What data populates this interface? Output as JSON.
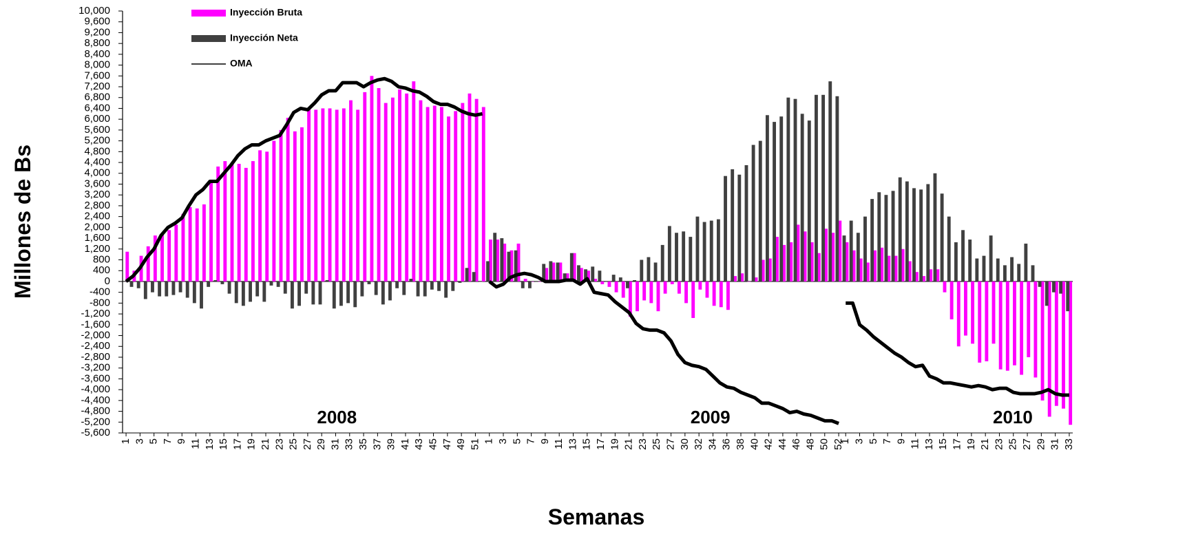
{
  "chart_data": {
    "type": "bar",
    "ylabel": "Millones de Bs",
    "xlabel": "Semanas",
    "ylim": [
      -5600,
      10000
    ],
    "yticks": [
      {
        "value": -5600,
        "label": "-5,600"
      },
      {
        "value": -5200,
        "label": "-5,200"
      },
      {
        "value": -4800,
        "label": "-4,800"
      },
      {
        "value": -4400,
        "label": "-4,400"
      },
      {
        "value": -4000,
        "label": "-4,000"
      },
      {
        "value": -3600,
        "label": "-3,600"
      },
      {
        "value": -3200,
        "label": "-3,200"
      },
      {
        "value": -2800,
        "label": "-2,800"
      },
      {
        "value": -2400,
        "label": "-2,400"
      },
      {
        "value": -2000,
        "label": "-2,000"
      },
      {
        "value": -1600,
        "label": "-1,600"
      },
      {
        "value": -1200,
        "label": "-1,200"
      },
      -800,
      -400,
      0,
      400,
      800,
      {
        "value": 1200,
        "label": "1,200"
      },
      {
        "value": 1600,
        "label": "1,600"
      },
      {
        "value": 2000,
        "label": "2,000"
      },
      {
        "value": 2400,
        "label": "2,400"
      },
      {
        "value": 2800,
        "label": "2,800"
      },
      {
        "value": 3200,
        "label": "3,200"
      },
      {
        "value": 3600,
        "label": "3,600"
      },
      {
        "value": 4000,
        "label": "4,000"
      },
      {
        "value": 4400,
        "label": "4,400"
      },
      {
        "value": 4800,
        "label": "4,800"
      },
      {
        "value": 5200,
        "label": "5,200"
      },
      {
        "value": 5600,
        "label": "5,600"
      },
      {
        "value": 6000,
        "label": "6,000"
      },
      {
        "value": 6400,
        "label": "6,400"
      },
      {
        "value": 6800,
        "label": "6,800"
      },
      {
        "value": 7200,
        "label": "7,200"
      },
      {
        "value": 7600,
        "label": "7,600"
      },
      {
        "value": 8000,
        "label": "8,000"
      },
      {
        "value": 8400,
        "label": "8,400"
      },
      {
        "value": 8800,
        "label": "8,800"
      },
      {
        "value": 9200,
        "label": "9,200"
      },
      {
        "value": 9600,
        "label": "9,600"
      },
      {
        "value": 10000,
        "label": "10,000"
      }
    ],
    "legend": "top-left",
    "series": [
      {
        "name": "Inyección Bruta",
        "color": "#ff00ff",
        "type": "bar"
      },
      {
        "name": "Inyección Neta",
        "color": "#404040",
        "type": "bar"
      },
      {
        "name": "OMA",
        "color": "#000000",
        "type": "line"
      }
    ],
    "groups": [
      {
        "label": "2008",
        "categories": [
          1,
          null,
          3,
          null,
          5,
          null,
          7,
          null,
          9,
          null,
          11,
          null,
          13,
          null,
          15,
          null,
          17,
          null,
          19,
          null,
          21,
          null,
          23,
          null,
          25,
          null,
          27,
          null,
          29,
          null,
          31,
          null,
          33,
          null,
          35,
          null,
          37,
          null,
          39,
          null,
          41,
          null,
          43,
          null,
          45,
          null,
          47,
          null,
          49,
          null,
          51,
          null
        ],
        "series": [
          {
            "values": [
              1100,
              400,
              950,
              1300,
              1700,
              1750,
              1900,
              2100,
              2500,
              2750,
              2700,
              2850,
              3700,
              4250,
              4450,
              4350,
              4350,
              4200,
              4450,
              4850,
              4800,
              5200,
              5600,
              6050,
              5550,
              5700,
              6400,
              6350,
              6400,
              6400,
              6350,
              6400,
              6700,
              6350,
              7000,
              7600,
              7150,
              6600,
              6800,
              7100,
              6950,
              7400,
              6700,
              6450,
              6500,
              6450,
              6100,
              6300,
              6600,
              6950,
              6750,
              6450
            ]
          },
          {
            "values": [
              0,
              -200,
              -250,
              -650,
              -400,
              -550,
              -550,
              -500,
              -400,
              -600,
              -800,
              -1000,
              -200,
              50,
              -100,
              -450,
              -800,
              -900,
              -750,
              -550,
              -750,
              -150,
              -200,
              -450,
              -1000,
              -900,
              -450,
              -850,
              -850,
              50,
              -1000,
              -900,
              -800,
              -950,
              -550,
              -100,
              -500,
              -850,
              -700,
              -250,
              -500,
              100,
              -550,
              -550,
              -300,
              -350,
              -600,
              -350,
              -50,
              500,
              350,
              0
            ]
          },
          {
            "values": [
              0,
              200,
              500,
              900,
              1200,
              1700,
              2000,
              2150,
              2350,
              2800,
              3200,
              3400,
              3700,
              3700,
              4000,
              4300,
              4650,
              4900,
              5050,
              5050,
              5200,
              5300,
              5400,
              5800,
              6250,
              6400,
              6350,
              6600,
              6900,
              7050,
              7050,
              7350,
              7350,
              7350,
              7200,
              7350,
              7450,
              7500,
              7400,
              7200,
              7150,
              7050,
              7000,
              6850,
              6650,
              6550,
              6550,
              6450,
              6300,
              6200,
              6150,
              6200
            ]
          }
        ]
      },
      {
        "label": "2009",
        "categories": [
          1,
          null,
          3,
          null,
          5,
          null,
          7,
          null,
          9,
          null,
          11,
          null,
          13,
          null,
          15,
          null,
          17,
          null,
          19,
          null,
          21,
          null,
          23,
          null,
          25,
          null,
          27,
          null,
          30,
          null,
          32,
          null,
          34,
          null,
          36,
          null,
          38,
          null,
          40,
          null,
          42,
          null,
          44,
          null,
          46,
          null,
          48,
          null,
          50,
          null,
          52
        ],
        "series": [
          {
            "values": [
              1550,
              1550,
              1400,
              1150,
              1400,
              100,
              0,
              0,
              500,
              700,
              700,
              300,
              1050,
              500,
              400,
              100,
              -100,
              -200,
              -400,
              -600,
              -1300,
              -1100,
              -700,
              -800,
              -1100,
              -450,
              -100,
              -450,
              -800,
              -1350,
              -300,
              -600,
              -900,
              -950,
              -1050,
              200,
              300,
              0,
              150,
              800,
              850,
              1650,
              1350,
              1450,
              2100,
              1850,
              1450,
              1050,
              1950,
              1800,
              2250
            ]
          },
          {
            "values": [
              750,
              1800,
              1600,
              1100,
              1150,
              -250,
              -250,
              0,
              650,
              750,
              700,
              300,
              1050,
              600,
              450,
              550,
              400,
              0,
              250,
              150,
              -250,
              50,
              800,
              900,
              700,
              1350,
              2050,
              1800,
              1850,
              1650,
              2400,
              2200,
              2250,
              2300,
              3900,
              4150,
              3950,
              4300,
              5050,
              5200,
              6150,
              5900,
              6100,
              6800,
              6750,
              6200,
              5950,
              6900,
              6900,
              7400,
              6850
            ]
          },
          {
            "values": [
              0,
              -200,
              -100,
              150,
              250,
              300,
              250,
              150,
              0,
              0,
              0,
              50,
              50,
              -100,
              100,
              -400,
              -450,
              -500,
              -750,
              -950,
              -1150,
              -1550,
              -1750,
              -1800,
              -1800,
              -1900,
              -2200,
              -2700,
              -3000,
              -3100,
              -3150,
              -3250,
              -3500,
              -3750,
              -3900,
              -3950,
              -4100,
              -4200,
              -4300,
              -4500,
              -4500,
              -4600,
              -4700,
              -4850,
              -4800,
              -4900,
              -4950,
              -5050,
              -5150,
              -5150,
              -5250
            ]
          }
        ]
      },
      {
        "label": "2010",
        "categories": [
          1,
          null,
          3,
          null,
          5,
          null,
          7,
          null,
          9,
          null,
          11,
          null,
          13,
          null,
          15,
          null,
          17,
          null,
          19,
          null,
          21,
          null,
          23,
          null,
          25,
          null,
          27,
          null,
          29,
          null,
          31,
          null,
          33
        ],
        "series": [
          {
            "values": [
              1450,
              1150,
              850,
              700,
              1150,
              1250,
              950,
              950,
              1200,
              750,
              350,
              200,
              450,
              450,
              -400,
              -1400,
              -2400,
              -2000,
              -2300,
              -3000,
              -2950,
              -2300,
              -3250,
              -3300,
              -3100,
              -3450,
              -2800,
              -3550,
              -4400,
              -5000,
              -4600,
              -4700,
              -5300
            ]
          },
          {
            "values": [
              1700,
              2250,
              1800,
              2400,
              3050,
              3300,
              3200,
              3350,
              3850,
              3700,
              3450,
              3400,
              3600,
              4000,
              3250,
              2400,
              1450,
              1900,
              1550,
              850,
              950,
              1700,
              850,
              600,
              900,
              650,
              1400,
              600,
              -200,
              -900,
              -400,
              -450,
              -1100
            ]
          },
          {
            "values": [
              -800,
              -800,
              -1600,
              -1800,
              -2050,
              -2250,
              -2450,
              -2650,
              -2800,
              -3000,
              -3150,
              -3100,
              -3500,
              -3600,
              -3750,
              -3750,
              -3800,
              -3850,
              -3900,
              -3850,
              -3900,
              -4000,
              -3950,
              -3950,
              -4100,
              -4150,
              -4150,
              -4150,
              -4100,
              -4000,
              -4150,
              -4200,
              -4200
            ]
          }
        ]
      }
    ]
  }
}
